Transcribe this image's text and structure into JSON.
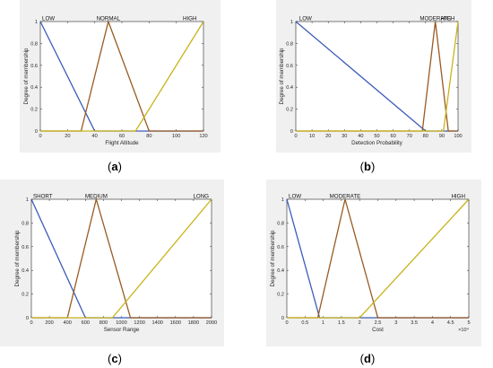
{
  "colors": {
    "c1": "#3b5bb8",
    "c2": "#9a5a22",
    "c3": "#c8b31a",
    "panel_bg": "#f0f0f0"
  },
  "chart_data": [
    {
      "type": "line",
      "panel_label": "(a)",
      "xlabel": "Flight Altitude",
      "ylabel": "Degree of membership",
      "xlim": [
        0,
        120
      ],
      "ylim": [
        0,
        1
      ],
      "xticks": [
        0,
        20,
        40,
        60,
        80,
        100,
        120
      ],
      "xtick_labels": [
        "0",
        "20",
        "40",
        "60",
        "80",
        "100",
        "120"
      ],
      "yticks": [
        0,
        0.2,
        0.4,
        0.6,
        0.8,
        1
      ],
      "ytick_labels": [
        "0",
        "0.2",
        "0.4",
        "0.6",
        "0.8",
        "1"
      ],
      "x_multiplier": "",
      "series": [
        {
          "name": "LOW",
          "points": [
            [
              0,
              1
            ],
            [
              40,
              0
            ],
            [
              120,
              0
            ]
          ]
        },
        {
          "name": "NORMAL",
          "points": [
            [
              0,
              0
            ],
            [
              30,
              0
            ],
            [
              50,
              1
            ],
            [
              80,
              0
            ],
            [
              120,
              0
            ]
          ]
        },
        {
          "name": "HIGH",
          "points": [
            [
              0,
              0
            ],
            [
              70,
              0
            ],
            [
              120,
              1
            ]
          ]
        }
      ],
      "term_label_x": [
        0,
        50,
        115
      ]
    },
    {
      "type": "line",
      "panel_label": "(b)",
      "xlabel": "Detection Probability",
      "ylabel": "Degree of membership",
      "xlim": [
        0,
        100
      ],
      "ylim": [
        0,
        1
      ],
      "xticks": [
        0,
        10,
        20,
        30,
        40,
        50,
        60,
        70,
        80,
        90,
        100
      ],
      "xtick_labels": [
        "0",
        "10",
        "20",
        "30",
        "40",
        "50",
        "60",
        "70",
        "80",
        "90",
        "100"
      ],
      "yticks": [
        0,
        0.2,
        0.4,
        0.6,
        0.8,
        1
      ],
      "ytick_labels": [
        "0",
        "0.2",
        "0.4",
        "0.6",
        "0.8",
        "1"
      ],
      "x_multiplier": "",
      "series": [
        {
          "name": "LOW",
          "points": [
            [
              0,
              1
            ],
            [
              80,
              0
            ],
            [
              100,
              0
            ]
          ]
        },
        {
          "name": "MODERATE",
          "points": [
            [
              0,
              0
            ],
            [
              78,
              0
            ],
            [
              86,
              1
            ],
            [
              94,
              0
            ],
            [
              100,
              0
            ]
          ]
        },
        {
          "name": "HIGH",
          "points": [
            [
              0,
              0
            ],
            [
              91,
              0
            ],
            [
              100,
              1
            ]
          ]
        }
      ],
      "term_label_x": [
        1,
        86,
        98
      ]
    },
    {
      "type": "line",
      "panel_label": "(c)",
      "xlabel": "Sensor Range",
      "ylabel": "Degree of membership",
      "xlim": [
        0,
        2000
      ],
      "ylim": [
        0,
        1
      ],
      "xticks": [
        0,
        200,
        400,
        600,
        800,
        1000,
        1200,
        1400,
        1600,
        1800,
        2000
      ],
      "xtick_labels": [
        "0",
        "200",
        "400",
        "600",
        "800",
        "1000",
        "1200",
        "1400",
        "1600",
        "1800",
        "2000"
      ],
      "yticks": [
        0,
        0.2,
        0.4,
        0.6,
        0.8,
        1
      ],
      "ytick_labels": [
        "0",
        "0.2",
        "0.4",
        "0.6",
        "0.8",
        "1"
      ],
      "x_multiplier": "",
      "series": [
        {
          "name": "SHORT",
          "points": [
            [
              0,
              1
            ],
            [
              600,
              0
            ],
            [
              2000,
              0
            ]
          ]
        },
        {
          "name": "MEDIUM",
          "points": [
            [
              0,
              0
            ],
            [
              400,
              0
            ],
            [
              720,
              1
            ],
            [
              1100,
              0
            ],
            [
              2000,
              0
            ]
          ]
        },
        {
          "name": "LONG",
          "points": [
            [
              0,
              0
            ],
            [
              900,
              0
            ],
            [
              2000,
              1
            ]
          ]
        }
      ],
      "term_label_x": [
        0,
        720,
        1970
      ]
    },
    {
      "type": "line",
      "panel_label": "(d)",
      "xlabel": "Cost",
      "ylabel": "Degree of membership",
      "xlim": [
        0,
        5
      ],
      "ylim": [
        0,
        1
      ],
      "xticks": [
        0,
        0.5,
        1,
        1.5,
        2,
        2.5,
        3,
        3.5,
        4,
        4.5,
        5
      ],
      "xtick_labels": [
        "0",
        "0.5",
        "1",
        "1.5",
        "2",
        "2.5",
        "3",
        "3.5",
        "4",
        "4.5",
        "5"
      ],
      "yticks": [
        0,
        0.2,
        0.4,
        0.6,
        0.8,
        1
      ],
      "ytick_labels": [
        "0",
        "0.2",
        "0.4",
        "0.6",
        "0.8",
        "1"
      ],
      "x_multiplier": "×10⁴",
      "series": [
        {
          "name": "LOW",
          "points": [
            [
              0,
              1
            ],
            [
              0.9,
              0
            ],
            [
              5,
              0
            ]
          ]
        },
        {
          "name": "MODERATE",
          "points": [
            [
              0,
              0
            ],
            [
              0.85,
              0
            ],
            [
              1.6,
              1
            ],
            [
              2.5,
              0
            ],
            [
              5,
              0
            ]
          ]
        },
        {
          "name": "HIGH",
          "points": [
            [
              0,
              0
            ],
            [
              2,
              0
            ],
            [
              5,
              1
            ]
          ]
        }
      ],
      "term_label_x": [
        0,
        1.6,
        4.9
      ]
    }
  ]
}
